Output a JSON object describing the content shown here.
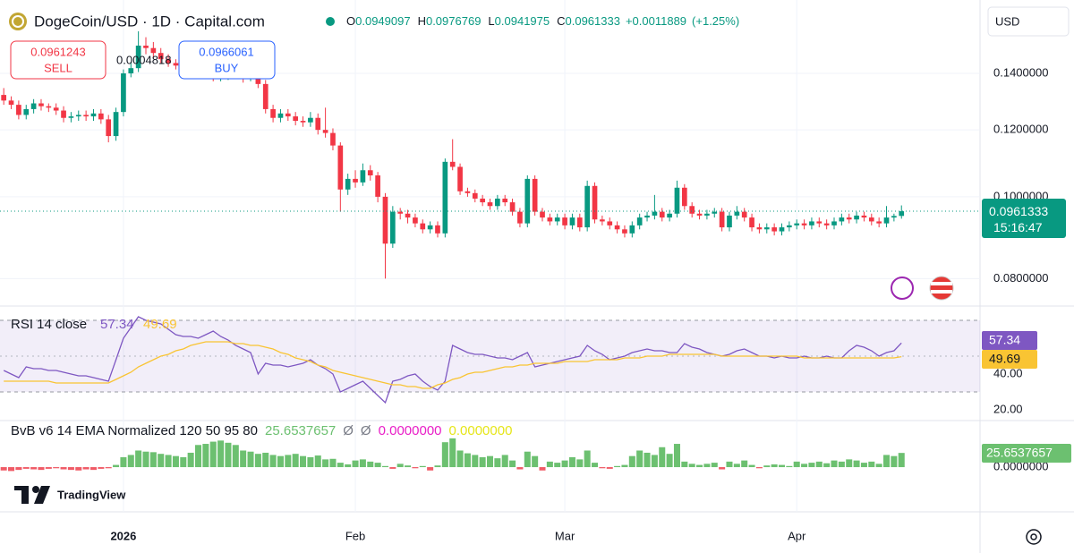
{
  "header": {
    "title": "DogeCoin/USD · 1D · Capital.com",
    "ohlc_labels": [
      "O",
      "H",
      "L",
      "C"
    ],
    "change": {
      "value": 0.0011889,
      "label": "+0.0011889"
    },
    "change_pct": {
      "value": 1.25,
      "label": "(+1.25%)"
    }
  },
  "trade": {
    "sell": {
      "price": 0.0961243,
      "label": "SELL"
    },
    "buy": {
      "price": 0.0966061,
      "label": "BUY"
    },
    "spread": 0.0004818
  },
  "currency": "USD",
  "countdown": "15:16:47",
  "brand": "TradingView",
  "chart_data": [
    {
      "type": "candlestick",
      "log_scale": true,
      "grid": true,
      "up_color": "#089981",
      "down_color": "#f23645",
      "ylim": [
        0.0746,
        0.171
      ],
      "yticks": [
        {
          "value": 0.08,
          "label": "0.0800000"
        },
        {
          "value": 0.1,
          "label": "0.1000000"
        },
        {
          "value": 0.12,
          "label": "0.1200000"
        },
        {
          "value": 0.14,
          "label": "0.1400000"
        }
      ],
      "xlim": [
        -0.5,
        130.5
      ],
      "xticks": [
        {
          "value": 16,
          "label": "2026"
        },
        {
          "value": 47,
          "label": "Feb"
        },
        {
          "value": 75,
          "label": "Mar"
        },
        {
          "value": 106,
          "label": "Apr"
        }
      ],
      "candles": [
        [
          0.132,
          0.1345,
          0.1285,
          0.13
        ],
        [
          0.13,
          0.1315,
          0.127,
          0.1285
        ],
        [
          0.1285,
          0.13,
          0.1235,
          0.125
        ],
        [
          0.125,
          0.1285,
          0.1235,
          0.127
        ],
        [
          0.127,
          0.1305,
          0.1255,
          0.129
        ],
        [
          0.129,
          0.1305,
          0.1265,
          0.128
        ],
        [
          0.128,
          0.129,
          0.126,
          0.1275
        ],
        [
          0.1275,
          0.129,
          0.125,
          0.1265
        ],
        [
          0.1265,
          0.128,
          0.1225,
          0.124
        ],
        [
          0.124,
          0.126,
          0.1225,
          0.1245
        ],
        [
          0.1245,
          0.1265,
          0.123,
          0.125
        ],
        [
          0.125,
          0.1265,
          0.123,
          0.1245
        ],
        [
          0.1245,
          0.127,
          0.123,
          0.1255
        ],
        [
          0.1255,
          0.127,
          0.122,
          0.1235
        ],
        [
          0.1235,
          0.125,
          0.116,
          0.118
        ],
        [
          0.118,
          0.1275,
          0.1165,
          0.126
        ],
        [
          0.126,
          0.1415,
          0.1245,
          0.14
        ],
        [
          0.14,
          0.1445,
          0.1385,
          0.142
        ],
        [
          0.142,
          0.157,
          0.1405,
          0.151
        ],
        [
          0.151,
          0.1545,
          0.1475,
          0.15
        ],
        [
          0.15,
          0.1525,
          0.146,
          0.148
        ],
        [
          0.148,
          0.15,
          0.144,
          0.1455
        ],
        [
          0.1455,
          0.1475,
          0.1425,
          0.144
        ],
        [
          0.144,
          0.1455,
          0.1415,
          0.143
        ],
        [
          0.143,
          0.1445,
          0.1405,
          0.142
        ],
        [
          0.142,
          0.1465,
          0.1405,
          0.1445
        ],
        [
          0.1445,
          0.146,
          0.1425,
          0.144
        ],
        [
          0.144,
          0.145,
          0.1385,
          0.14
        ],
        [
          0.14,
          0.1415,
          0.137,
          0.1385
        ],
        [
          0.1385,
          0.141,
          0.137,
          0.139
        ],
        [
          0.139,
          0.1425,
          0.1375,
          0.141
        ],
        [
          0.141,
          0.1425,
          0.138,
          0.1395
        ],
        [
          0.1395,
          0.1405,
          0.1365,
          0.138
        ],
        [
          0.138,
          0.141,
          0.137,
          0.1395
        ],
        [
          0.1395,
          0.14,
          0.1345,
          0.136
        ],
        [
          0.136,
          0.1375,
          0.1255,
          0.127
        ],
        [
          0.127,
          0.1285,
          0.1225,
          0.124
        ],
        [
          0.124,
          0.127,
          0.1225,
          0.1255
        ],
        [
          0.1255,
          0.127,
          0.123,
          0.1245
        ],
        [
          0.1245,
          0.126,
          0.1215,
          0.123
        ],
        [
          0.123,
          0.1245,
          0.121,
          0.1225
        ],
        [
          0.1225,
          0.126,
          0.121,
          0.124
        ],
        [
          0.124,
          0.1255,
          0.1185,
          0.12
        ],
        [
          0.12,
          0.1275,
          0.1175,
          0.119
        ],
        [
          0.119,
          0.1205,
          0.1135,
          0.115
        ],
        [
          0.115,
          0.116,
          0.096,
          0.102
        ],
        [
          0.102,
          0.1065,
          0.1005,
          0.105
        ],
        [
          0.105,
          0.1075,
          0.1025,
          0.104
        ],
        [
          0.104,
          0.1095,
          0.103,
          0.1075
        ],
        [
          0.1075,
          0.109,
          0.1045,
          0.106
        ],
        [
          0.106,
          0.107,
          0.0985,
          0.1
        ],
        [
          0.1,
          0.101,
          0.08,
          0.088
        ],
        [
          0.088,
          0.0975,
          0.087,
          0.096
        ],
        [
          0.096,
          0.097,
          0.094,
          0.0955
        ],
        [
          0.0955,
          0.0965,
          0.093,
          0.0945
        ],
        [
          0.0945,
          0.0955,
          0.092,
          0.093
        ],
        [
          0.093,
          0.094,
          0.0905,
          0.0915
        ],
        [
          0.0915,
          0.0935,
          0.0905,
          0.0925
        ],
        [
          0.0925,
          0.0935,
          0.0895,
          0.0905
        ],
        [
          0.0905,
          0.111,
          0.0895,
          0.11
        ],
        [
          0.11,
          0.117,
          0.1075,
          0.1085
        ],
        [
          0.1085,
          0.1095,
          0.1005,
          0.1015
        ],
        [
          0.1015,
          0.1025,
          0.1,
          0.101
        ],
        [
          0.101,
          0.102,
          0.0985,
          0.0995
        ],
        [
          0.0995,
          0.1005,
          0.0975,
          0.0985
        ],
        [
          0.0985,
          0.0995,
          0.0965,
          0.0975
        ],
        [
          0.0975,
          0.1005,
          0.0965,
          0.0995
        ],
        [
          0.0995,
          0.1005,
          0.0975,
          0.0985
        ],
        [
          0.0985,
          0.0995,
          0.095,
          0.096
        ],
        [
          0.096,
          0.097,
          0.092,
          0.093
        ],
        [
          0.093,
          0.106,
          0.092,
          0.105
        ],
        [
          0.105,
          0.106,
          0.095,
          0.096
        ],
        [
          0.096,
          0.097,
          0.0935,
          0.0945
        ],
        [
          0.0945,
          0.0955,
          0.0925,
          0.0935
        ],
        [
          0.0935,
          0.0955,
          0.0925,
          0.0945
        ],
        [
          0.0945,
          0.0955,
          0.0915,
          0.0925
        ],
        [
          0.0925,
          0.0955,
          0.0915,
          0.0945
        ],
        [
          0.0945,
          0.0955,
          0.091,
          0.092
        ],
        [
          0.092,
          0.1045,
          0.091,
          0.103
        ],
        [
          0.103,
          0.104,
          0.093,
          0.094
        ],
        [
          0.094,
          0.095,
          0.0925,
          0.0935
        ],
        [
          0.0935,
          0.0945,
          0.0915,
          0.0925
        ],
        [
          0.0925,
          0.0935,
          0.0905,
          0.0915
        ],
        [
          0.0915,
          0.0925,
          0.0895,
          0.0905
        ],
        [
          0.0905,
          0.0935,
          0.0895,
          0.0925
        ],
        [
          0.0925,
          0.0955,
          0.0915,
          0.0945
        ],
        [
          0.0945,
          0.096,
          0.0935,
          0.095
        ],
        [
          0.095,
          0.1005,
          0.094,
          0.096
        ],
        [
          0.096,
          0.097,
          0.0935,
          0.0945
        ],
        [
          0.0945,
          0.0965,
          0.0935,
          0.0955
        ],
        [
          0.0955,
          0.1045,
          0.0945,
          0.1025
        ],
        [
          0.1025,
          0.1035,
          0.0965,
          0.0975
        ],
        [
          0.0975,
          0.0985,
          0.0945,
          0.0955
        ],
        [
          0.0955,
          0.0965,
          0.094,
          0.095
        ],
        [
          0.095,
          0.0965,
          0.094,
          0.0955
        ],
        [
          0.0955,
          0.097,
          0.0945,
          0.096
        ],
        [
          0.096,
          0.097,
          0.091,
          0.092
        ],
        [
          0.092,
          0.096,
          0.091,
          0.095
        ],
        [
          0.095,
          0.0975,
          0.094,
          0.096
        ],
        [
          0.096,
          0.097,
          0.0935,
          0.0945
        ],
        [
          0.0945,
          0.0955,
          0.091,
          0.092
        ],
        [
          0.092,
          0.093,
          0.0905,
          0.0915
        ],
        [
          0.0915,
          0.093,
          0.0905,
          0.092
        ],
        [
          0.092,
          0.093,
          0.09,
          0.091
        ],
        [
          0.091,
          0.093,
          0.09,
          0.092
        ],
        [
          0.092,
          0.0935,
          0.091,
          0.0925
        ],
        [
          0.0925,
          0.094,
          0.0915,
          0.093
        ],
        [
          0.093,
          0.094,
          0.0915,
          0.0925
        ],
        [
          0.0925,
          0.0945,
          0.0915,
          0.0935
        ],
        [
          0.0935,
          0.0945,
          0.092,
          0.093
        ],
        [
          0.093,
          0.094,
          0.0915,
          0.0925
        ],
        [
          0.0925,
          0.0945,
          0.0915,
          0.0935
        ],
        [
          0.0935,
          0.0955,
          0.0925,
          0.0945
        ],
        [
          0.0945,
          0.0955,
          0.093,
          0.094
        ],
        [
          0.094,
          0.096,
          0.093,
          0.095
        ],
        [
          0.095,
          0.096,
          0.0935,
          0.0945
        ],
        [
          0.0945,
          0.0955,
          0.0925,
          0.0935
        ],
        [
          0.0935,
          0.0945,
          0.092,
          0.093
        ],
        [
          0.093,
          0.0975,
          0.092,
          0.0945
        ],
        [
          0.0945,
          0.0955,
          0.0935,
          0.0949
        ],
        [
          0.0949097,
          0.0976769,
          0.0941975,
          0.0961333
        ]
      ]
    },
    {
      "type": "line",
      "title": "RSI 14 close",
      "ylim": [
        14,
        76.5
      ],
      "yticks": [
        {
          "value": 40,
          "label": "40.00"
        },
        {
          "value": 20,
          "label": "20.00"
        }
      ],
      "band": [
        30,
        70
      ],
      "midline": 50,
      "band_color": "#7e57c2",
      "series": [
        {
          "color": "#7e57c2",
          "values": [
            42,
            40,
            38,
            44,
            43,
            43,
            42,
            42,
            41,
            40,
            39,
            39,
            38,
            37,
            36,
            48,
            60,
            66,
            72,
            70,
            69,
            68,
            65,
            62,
            61,
            61,
            60,
            62,
            64,
            61,
            59,
            56,
            54,
            52,
            40,
            46,
            45,
            45,
            44,
            45,
            46,
            48,
            45,
            43,
            40,
            30,
            32,
            34,
            36,
            32,
            28,
            24,
            36,
            37,
            39,
            40,
            36,
            33,
            31,
            36,
            56,
            54,
            52,
            51,
            51,
            50,
            49,
            49,
            48,
            50,
            52,
            44,
            45,
            46,
            47,
            48,
            49,
            50,
            56,
            53,
            51,
            48,
            49,
            50,
            52,
            53,
            54,
            53,
            53,
            52,
            52,
            57,
            55,
            54,
            52,
            51,
            50,
            51,
            53,
            54,
            52,
            50,
            50,
            49,
            50,
            49,
            49,
            50,
            49,
            49,
            50,
            49,
            49,
            53,
            56,
            55,
            53,
            50,
            52,
            53,
            57.34
          ]
        },
        {
          "color": "#f9c433",
          "values": [
            36,
            36,
            36,
            36,
            36,
            36,
            36,
            35,
            35,
            35,
            35,
            35,
            35,
            35,
            35,
            37,
            39,
            41,
            44,
            46,
            48,
            50,
            51,
            53,
            54,
            56,
            57,
            58,
            58,
            58,
            58,
            57,
            57,
            56,
            56,
            55,
            54,
            52,
            51,
            49,
            48,
            47,
            45,
            44,
            42,
            41,
            40,
            39,
            38,
            37,
            36,
            35,
            34,
            34,
            33,
            33,
            32,
            32,
            34,
            35,
            37,
            38,
            40,
            41,
            41,
            42,
            43,
            44,
            44,
            45,
            45,
            46,
            46,
            46,
            46,
            47,
            47,
            47,
            47,
            48,
            48,
            48,
            48,
            49,
            49,
            49,
            50,
            50,
            50,
            51,
            51,
            51,
            51,
            51,
            51,
            51,
            50,
            50,
            50,
            50,
            50,
            50,
            50,
            50,
            50,
            50,
            50,
            49,
            49,
            49,
            49,
            49,
            49,
            49,
            49,
            49,
            49,
            49,
            49,
            49,
            49.69
          ]
        }
      ]
    },
    {
      "type": "bar",
      "title": "BvB v6 14 EMA Normalized 120 50 95 80",
      "ylim": [
        -29,
        76
      ],
      "yticks": [
        {
          "value": 0,
          "label": "0.0000000"
        }
      ],
      "up_color": "#6cc070",
      "down_color": "#f05a66",
      "values": [
        -6,
        -7,
        -5,
        -3,
        -4,
        -5,
        -3,
        -2,
        -4,
        -5,
        -6,
        -4,
        -5,
        -3,
        -2,
        4,
        18,
        22,
        30,
        28,
        27,
        24,
        22,
        20,
        18,
        26,
        40,
        42,
        46,
        48,
        44,
        40,
        30,
        28,
        24,
        26,
        22,
        20,
        22,
        24,
        20,
        18,
        21,
        14,
        15,
        8,
        5,
        12,
        14,
        10,
        8,
        2,
        -3,
        6,
        3,
        -2,
        2,
        -6,
        3,
        45,
        52,
        30,
        25,
        22,
        18,
        20,
        16,
        22,
        12,
        -4,
        28,
        20,
        -6,
        10,
        8,
        12,
        18,
        14,
        30,
        8,
        -2,
        -3,
        2,
        4,
        20,
        30,
        26,
        22,
        36,
        24,
        42,
        10,
        6,
        4,
        6,
        8,
        -4,
        10,
        6,
        12,
        4,
        -2,
        3,
        5,
        4,
        2,
        10,
        6,
        8,
        10,
        7,
        12,
        10,
        14,
        12,
        8,
        10,
        6,
        22,
        20,
        25.6537657
      ],
      "extras": [
        {
          "label": "Ø",
          "color": "#787b86"
        },
        {
          "label": "Ø",
          "color": "#787b86"
        },
        {
          "value": 0,
          "label": "0.0000000",
          "color": "#e91ec7"
        },
        {
          "value": 0,
          "label": "0.0000000",
          "color": "#e6e619"
        }
      ]
    }
  ]
}
